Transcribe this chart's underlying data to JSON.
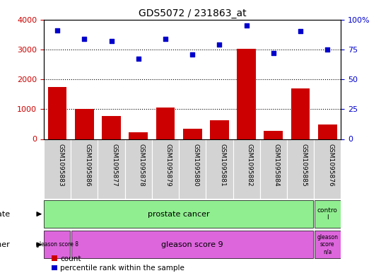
{
  "title": "GDS5072 / 231863_at",
  "samples": [
    "GSM1095883",
    "GSM1095886",
    "GSM1095877",
    "GSM1095878",
    "GSM1095879",
    "GSM1095880",
    "GSM1095881",
    "GSM1095882",
    "GSM1095884",
    "GSM1095885",
    "GSM1095876"
  ],
  "counts": [
    1750,
    1000,
    780,
    220,
    1060,
    340,
    620,
    3020,
    280,
    1700,
    480
  ],
  "percentiles": [
    91,
    84,
    82,
    67,
    84,
    71,
    79,
    95,
    72,
    90,
    75
  ],
  "bar_color": "#cc0000",
  "dot_color": "#0000cc",
  "ylim_left": [
    0,
    4000
  ],
  "ylim_right": [
    0,
    100
  ],
  "yticks_left": [
    0,
    1000,
    2000,
    3000,
    4000
  ],
  "yticks_right": [
    0,
    25,
    50,
    75,
    100
  ],
  "ytick_labels_right": [
    "0",
    "25",
    "50",
    "75",
    "100%"
  ],
  "tick_area_color": "#d3d3d3",
  "green_color": "#90EE90",
  "magenta_color": "#DD66DD",
  "legend_count_color": "#cc0000",
  "legend_pct_color": "#0000cc"
}
